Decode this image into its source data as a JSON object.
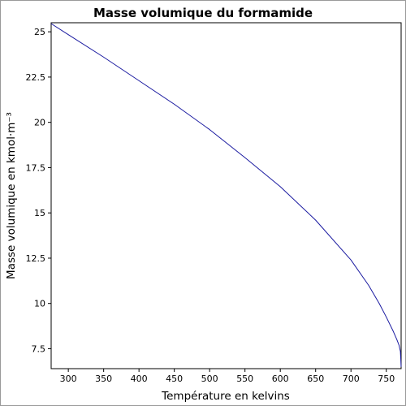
{
  "chart_data": {
    "type": "line",
    "title": "Masse volumique du formamide",
    "xlabel": "Température en kelvins",
    "ylabel": "Masse volumique en kmol·m⁻³",
    "xlim": [
      275.7,
      771
    ],
    "ylim": [
      6.4,
      25.5
    ],
    "xticks": [
      300,
      350,
      400,
      450,
      500,
      550,
      600,
      650,
      700,
      750
    ],
    "yticks": [
      7.5,
      10,
      12.5,
      15,
      17.5,
      20,
      22.5,
      25
    ],
    "ytick_labels": [
      "7.5",
      "10",
      "12.5",
      "15",
      "17.5",
      "20",
      "22.5",
      "25"
    ],
    "grid": false,
    "line_color": "#1a1aa0",
    "series": [
      {
        "x": [
          275.7,
          300,
          350,
          400,
          450,
          500,
          550,
          600,
          650,
          700,
          725,
          740,
          750,
          760,
          765,
          768,
          770,
          771
        ],
        "y": [
          25.45,
          24.84,
          23.6,
          22.3,
          21.0,
          19.6,
          18.05,
          16.45,
          14.6,
          12.4,
          11.0,
          10.0,
          9.25,
          8.45,
          8.0,
          7.7,
          7.35,
          6.5
        ]
      }
    ]
  }
}
